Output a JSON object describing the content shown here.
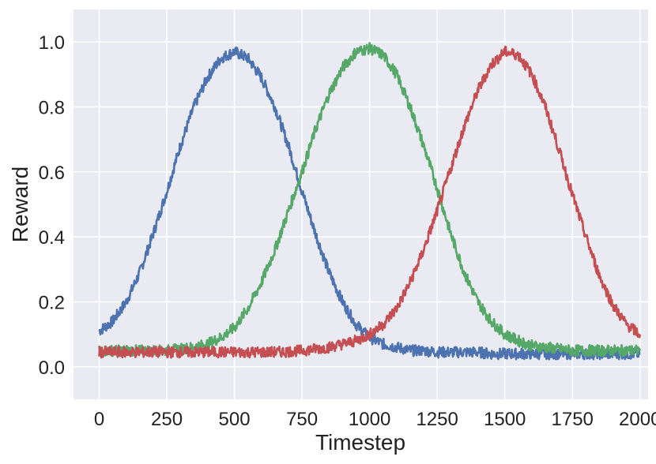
{
  "chart_data": {
    "type": "line",
    "title": "",
    "xlabel": "Timestep",
    "ylabel": "Reward",
    "xlim": [
      -95,
      2030
    ],
    "ylim": [
      -0.1,
      1.1
    ],
    "xticks": [
      0,
      250,
      500,
      750,
      1000,
      1250,
      1500,
      1750,
      2000
    ],
    "xtick_labels": [
      "0",
      "250",
      "500",
      "750",
      "1000",
      "1250",
      "1500",
      "1750",
      "2000"
    ],
    "yticks": [
      0.0,
      0.2,
      0.4,
      0.6,
      0.8,
      1.0
    ],
    "ytick_labels": [
      "0.0",
      "0.2",
      "0.4",
      "0.6",
      "0.8",
      "1.0"
    ],
    "grid": true,
    "background": "#EAEAF2",
    "legend": "none",
    "series": [
      {
        "color": "#4C72B0",
        "x": [
          0,
          50,
          100,
          150,
          200,
          250,
          300,
          350,
          400,
          450,
          500,
          550,
          600,
          650,
          700,
          750,
          800,
          850,
          900,
          950,
          1000,
          1050,
          1100,
          1150,
          1200,
          1250,
          1300,
          1350,
          1400,
          1450,
          1500,
          1550,
          1600,
          1650,
          1700,
          1750,
          1800,
          1850,
          1900,
          1950,
          2000
        ],
        "y": [
          0.11,
          0.14,
          0.2,
          0.29,
          0.41,
          0.54,
          0.68,
          0.8,
          0.89,
          0.95,
          0.97,
          0.95,
          0.89,
          0.8,
          0.68,
          0.54,
          0.41,
          0.29,
          0.2,
          0.13,
          0.09,
          0.07,
          0.06,
          0.05,
          0.05,
          0.045,
          0.045,
          0.045,
          0.045,
          0.04,
          0.04,
          0.04,
          0.04,
          0.04,
          0.04,
          0.04,
          0.04,
          0.04,
          0.04,
          0.04,
          0.04
        ]
      },
      {
        "color": "#55A868",
        "x": [
          0,
          50,
          100,
          150,
          200,
          250,
          300,
          350,
          400,
          450,
          500,
          550,
          600,
          650,
          700,
          750,
          800,
          850,
          900,
          950,
          1000,
          1050,
          1100,
          1150,
          1200,
          1250,
          1300,
          1350,
          1400,
          1450,
          1500,
          1550,
          1600,
          1650,
          1700,
          1750,
          1800,
          1850,
          1900,
          1950,
          2000
        ],
        "y": [
          0.05,
          0.05,
          0.05,
          0.05,
          0.05,
          0.05,
          0.055,
          0.06,
          0.07,
          0.09,
          0.12,
          0.18,
          0.26,
          0.36,
          0.48,
          0.6,
          0.73,
          0.84,
          0.92,
          0.97,
          0.98,
          0.96,
          0.9,
          0.8,
          0.68,
          0.55,
          0.41,
          0.29,
          0.2,
          0.14,
          0.1,
          0.08,
          0.065,
          0.06,
          0.055,
          0.05,
          0.05,
          0.05,
          0.05,
          0.05,
          0.05
        ]
      },
      {
        "color": "#C44E52",
        "x": [
          0,
          50,
          100,
          150,
          200,
          250,
          300,
          350,
          400,
          450,
          500,
          550,
          600,
          650,
          700,
          750,
          800,
          850,
          900,
          950,
          1000,
          1050,
          1100,
          1150,
          1200,
          1250,
          1300,
          1350,
          1400,
          1450,
          1500,
          1550,
          1600,
          1650,
          1700,
          1750,
          1800,
          1850,
          1900,
          1950,
          2000
        ],
        "y": [
          0.045,
          0.045,
          0.045,
          0.045,
          0.045,
          0.045,
          0.045,
          0.045,
          0.045,
          0.045,
          0.045,
          0.045,
          0.045,
          0.045,
          0.047,
          0.05,
          0.055,
          0.06,
          0.07,
          0.08,
          0.1,
          0.13,
          0.18,
          0.26,
          0.36,
          0.48,
          0.61,
          0.74,
          0.85,
          0.93,
          0.97,
          0.96,
          0.9,
          0.8,
          0.67,
          0.53,
          0.4,
          0.28,
          0.19,
          0.13,
          0.1
        ]
      }
    ]
  }
}
